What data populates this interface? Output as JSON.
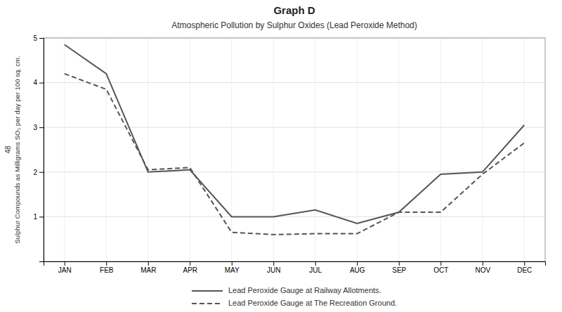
{
  "chart_data": {
    "type": "line",
    "title": "Graph D",
    "subtitle": "Atmospheric Pollution by Sulphur Oxides (Lead Peroxide Method)",
    "y_label": "Sulphur Compounds as Milligrams SO₃ per day per 100 sq. cm.",
    "annotations": [
      "48"
    ],
    "categories": [
      "JAN",
      "FEB",
      "MAR",
      "APR",
      "MAY",
      "JUN",
      "JUL",
      "AUG",
      "SEP",
      "OCT",
      "NOV",
      "DEC"
    ],
    "series": [
      {
        "name": "Lead Peroxide Gauge at Railway Allotments.",
        "color": "#555555",
        "line_style": "solid",
        "values": [
          4.85,
          4.2,
          2.0,
          2.05,
          1.0,
          1.0,
          1.15,
          0.85,
          1.1,
          1.95,
          2.0,
          3.05
        ]
      },
      {
        "name": "Lead Peroxide Gauge at The Recreation Ground.",
        "color": "#555555",
        "line_style": "dashed",
        "values": [
          4.2,
          3.85,
          2.05,
          2.1,
          0.65,
          0.6,
          0.62,
          0.62,
          1.1,
          1.1,
          1.95,
          2.65
        ]
      }
    ],
    "ylim": [
      0,
      5
    ],
    "yticks": [
      1,
      2,
      3,
      4,
      5
    ],
    "grid": true,
    "legend": "bottom"
  }
}
